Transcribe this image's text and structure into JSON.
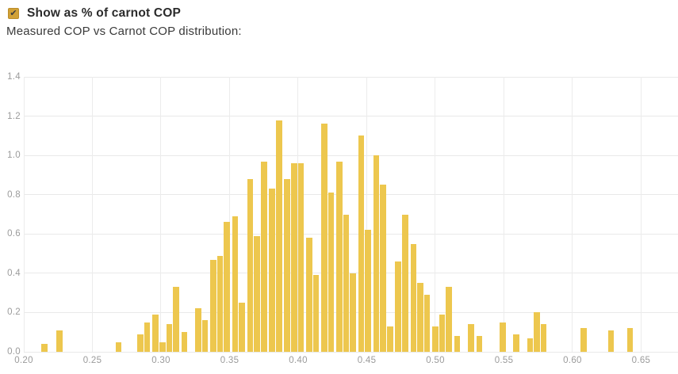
{
  "header": {
    "checkbox_label": "Show as % of carnot COP",
    "checkbox_checked": true,
    "checkbox_glyph": "✔",
    "subtitle": "Measured COP vs Carnot COP distribution:"
  },
  "colors": {
    "bar": "#edc74e",
    "checkbox_fill": "#d1a136",
    "checkbox_border": "#bb8d2b",
    "grid": "#e9e9e9",
    "axis_label": "#9b9b9b",
    "text": "#2b2b2b"
  },
  "chart_data": {
    "type": "bar",
    "title": "Measured COP vs Carnot COP distribution",
    "xlabel": "",
    "ylabel": "",
    "grid": true,
    "legend": "none",
    "xlim": [
      0.2,
      0.674
    ],
    "ylim": [
      0,
      1.4
    ],
    "x_ticks": [
      0.2,
      0.25,
      0.3,
      0.35,
      0.4,
      0.45,
      0.5,
      0.55,
      0.6,
      0.65
    ],
    "x_tick_labels": [
      "0.20",
      "0.25",
      "0.30",
      "0.35",
      "0.40",
      "0.45",
      "0.50",
      "0.55",
      "0.60",
      "0.65"
    ],
    "y_ticks": [
      0,
      0.2,
      0.4,
      0.6,
      0.8,
      1.0,
      1.2,
      1.4
    ],
    "y_tick_labels": [
      "0.0",
      "0.2",
      "0.4",
      "0.6",
      "0.8",
      "1.0",
      "1.2",
      "1.4"
    ],
    "bar_width_value": 0.0044,
    "bars": [
      [
        0.215,
        0.04
      ],
      [
        0.226,
        0.11
      ],
      [
        0.269,
        0.05
      ],
      [
        0.285,
        0.09
      ],
      [
        0.29,
        0.15
      ],
      [
        0.296,
        0.19
      ],
      [
        0.301,
        0.05
      ],
      [
        0.306,
        0.14
      ],
      [
        0.311,
        0.33
      ],
      [
        0.317,
        0.1
      ],
      [
        0.327,
        0.22
      ],
      [
        0.332,
        0.16
      ],
      [
        0.338,
        0.47
      ],
      [
        0.343,
        0.49
      ],
      [
        0.348,
        0.66
      ],
      [
        0.354,
        0.69
      ],
      [
        0.359,
        0.25
      ],
      [
        0.365,
        0.88
      ],
      [
        0.37,
        0.59
      ],
      [
        0.375,
        0.97
      ],
      [
        0.381,
        0.83
      ],
      [
        0.386,
        1.18
      ],
      [
        0.392,
        0.88
      ],
      [
        0.397,
        0.96
      ],
      [
        0.402,
        0.96
      ],
      [
        0.408,
        0.58
      ],
      [
        0.413,
        0.39
      ],
      [
        0.419,
        1.16
      ],
      [
        0.424,
        0.81
      ],
      [
        0.43,
        0.97
      ],
      [
        0.435,
        0.7
      ],
      [
        0.44,
        0.4
      ],
      [
        0.446,
        1.1
      ],
      [
        0.451,
        0.62
      ],
      [
        0.457,
        1.0
      ],
      [
        0.462,
        0.85
      ],
      [
        0.467,
        0.13
      ],
      [
        0.473,
        0.46
      ],
      [
        0.478,
        0.7
      ],
      [
        0.484,
        0.55
      ],
      [
        0.489,
        0.35
      ],
      [
        0.494,
        0.29
      ],
      [
        0.5,
        0.13
      ],
      [
        0.505,
        0.19
      ],
      [
        0.51,
        0.33
      ],
      [
        0.516,
        0.08
      ],
      [
        0.526,
        0.14
      ],
      [
        0.532,
        0.08
      ],
      [
        0.549,
        0.15
      ],
      [
        0.559,
        0.09
      ],
      [
        0.569,
        0.07
      ],
      [
        0.574,
        0.2
      ],
      [
        0.579,
        0.14
      ],
      [
        0.608,
        0.12
      ],
      [
        0.628,
        0.11
      ],
      [
        0.642,
        0.12
      ]
    ]
  }
}
